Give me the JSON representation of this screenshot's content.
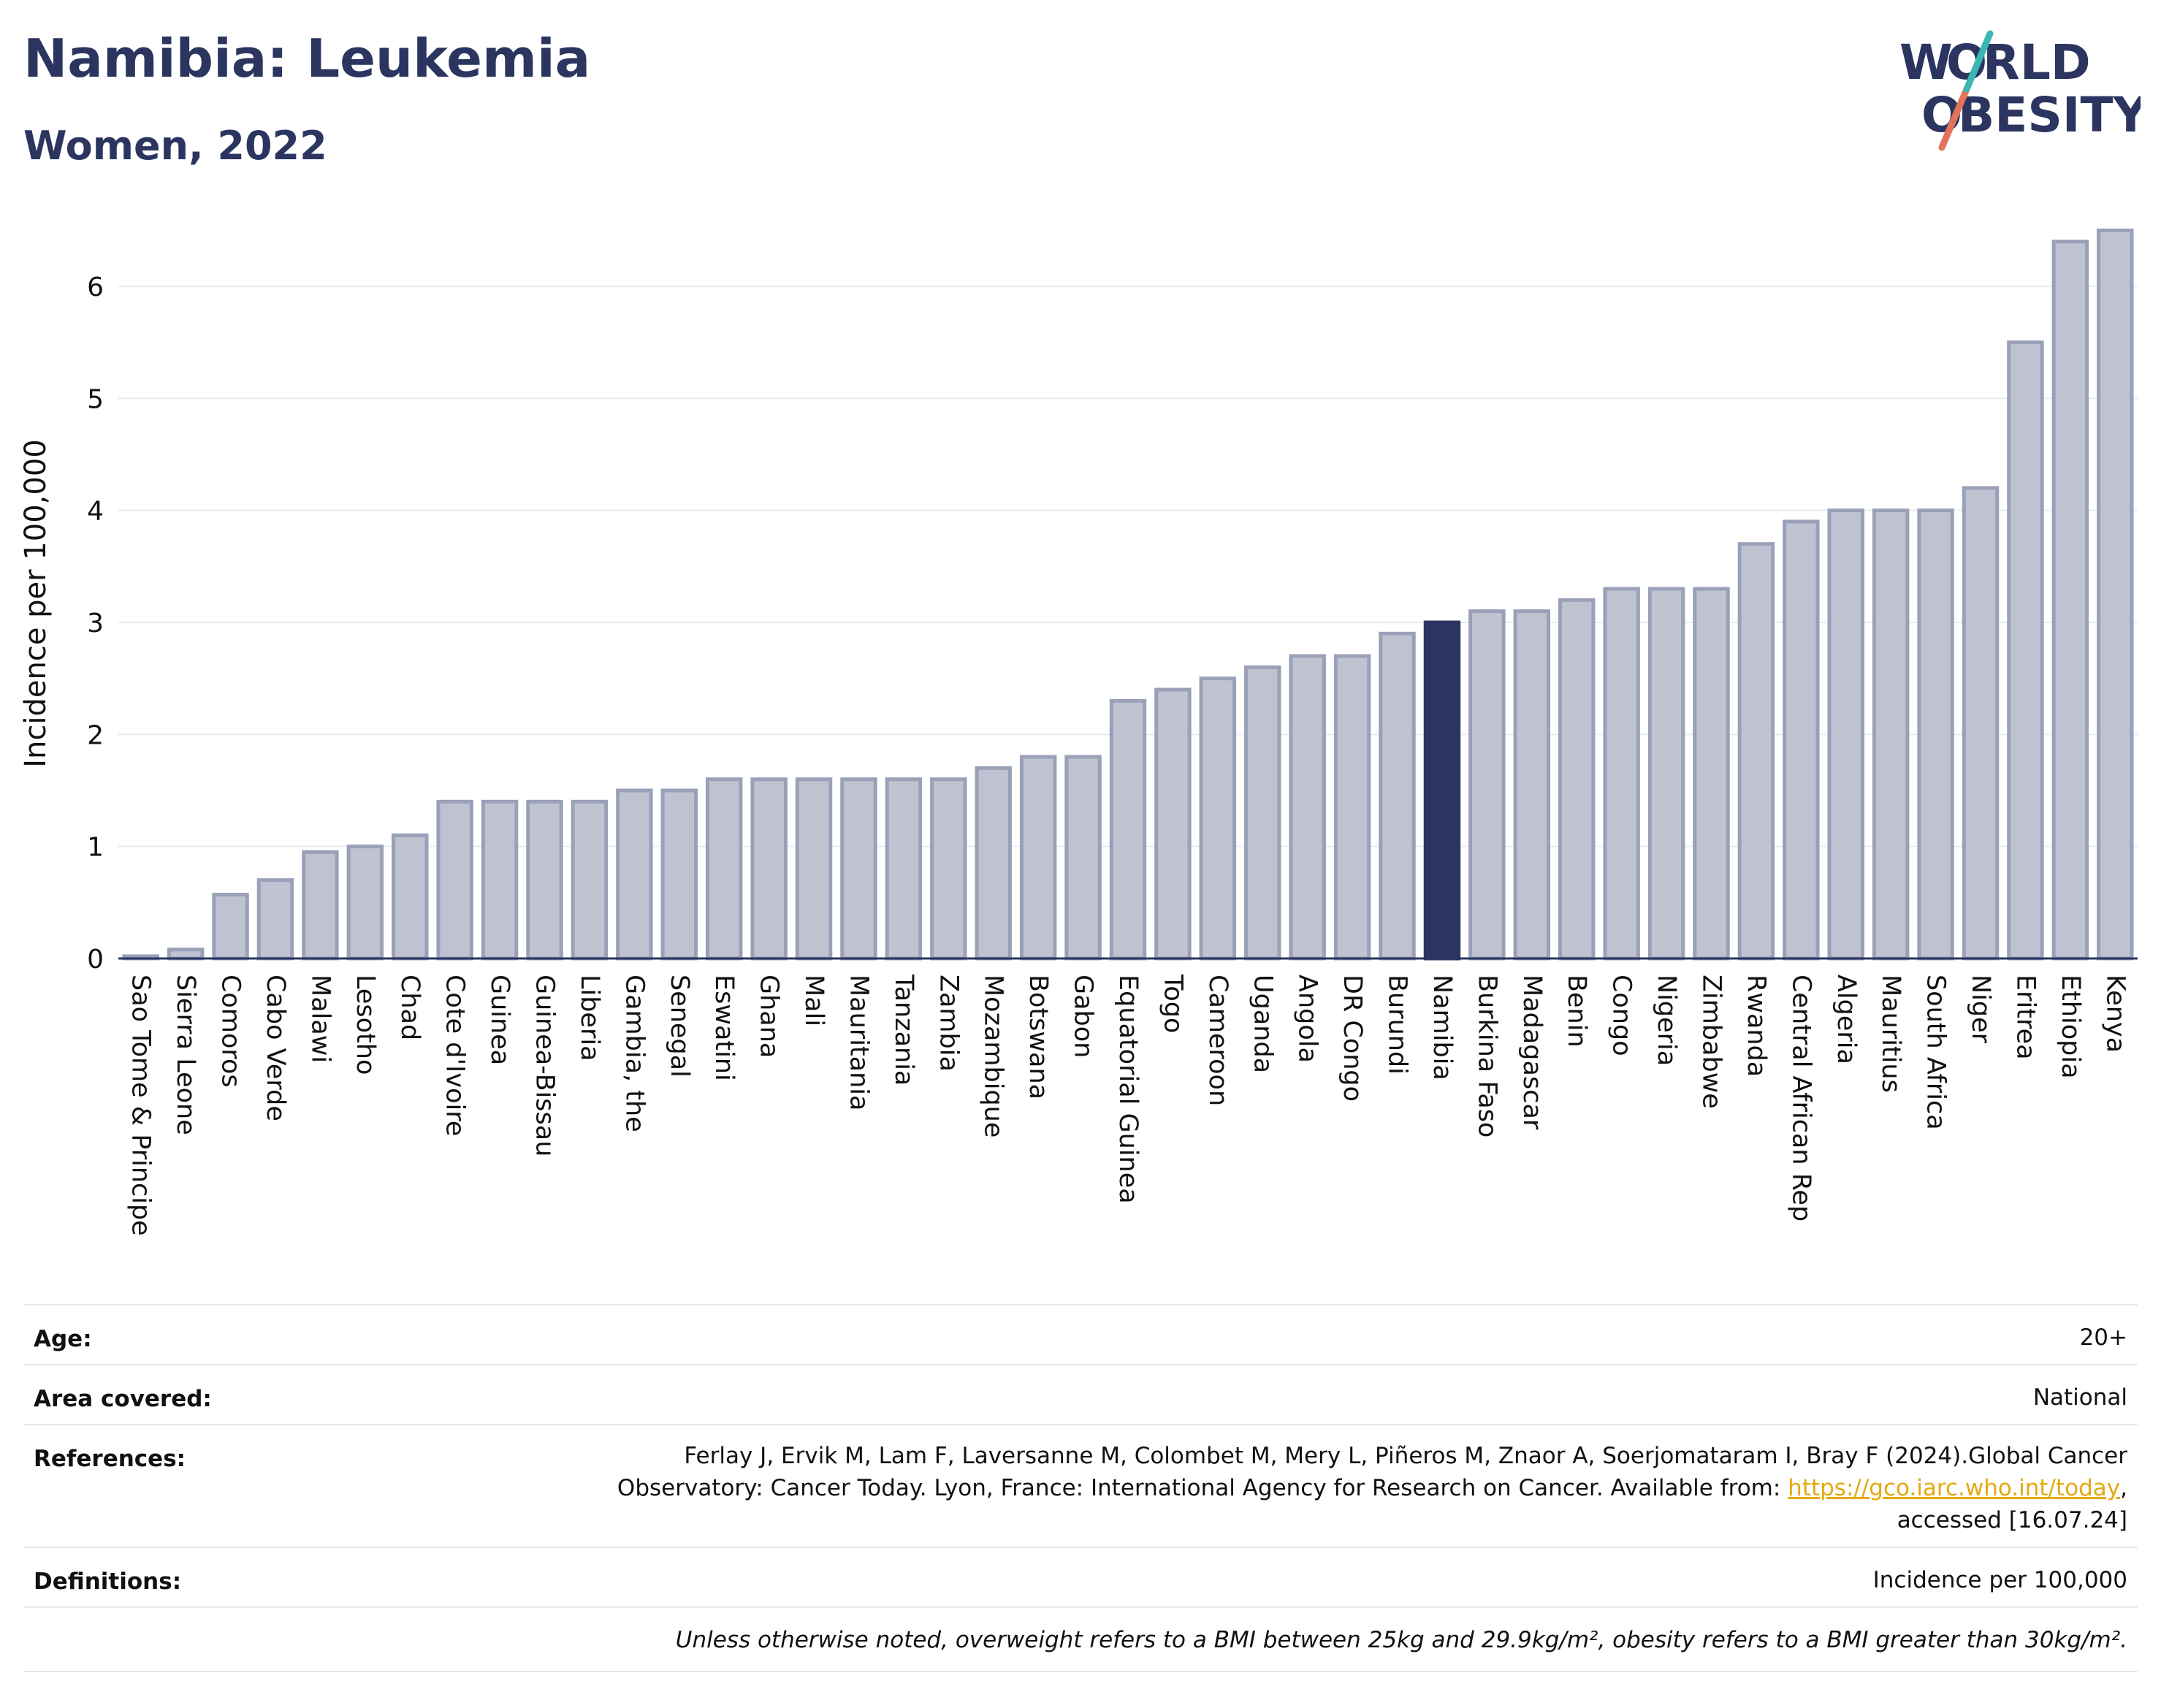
{
  "header": {
    "title": "Namibia: Leukemia",
    "subtitle": "Women, 2022",
    "logo_text": "WORLD OBESITY"
  },
  "colors": {
    "bar_default": "#bfc3d1",
    "bar_border": "#9aa0b8",
    "bar_highlight": "#2b3560",
    "title": "#2b3560"
  },
  "chart_data": {
    "type": "bar",
    "ylabel": "Incidence per 100,000",
    "xlabel": "",
    "ylim": [
      0,
      6.6
    ],
    "yticks": [
      0,
      1,
      2,
      3,
      4,
      5,
      6
    ],
    "grid": true,
    "highlight": "Namibia",
    "categories": [
      "Sao Tome & Principe",
      "Sierra Leone",
      "Comoros",
      "Cabo Verde",
      "Malawi",
      "Lesotho",
      "Chad",
      "Cote d'Ivoire",
      "Guinea",
      "Guinea-Bissau",
      "Liberia",
      "Gambia, the",
      "Senegal",
      "Eswatini",
      "Ghana",
      "Mali",
      "Mauritania",
      "Tanzania",
      "Zambia",
      "Mozambique",
      "Botswana",
      "Gabon",
      "Equatorial Guinea",
      "Togo",
      "Cameroon",
      "Uganda",
      "Angola",
      "DR Congo",
      "Burundi",
      "Namibia",
      "Burkina Faso",
      "Madagascar",
      "Benin",
      "Congo",
      "Nigeria",
      "Zimbabwe",
      "Rwanda",
      "Central African Rep",
      "Algeria",
      "Mauritius",
      "South Africa",
      "Niger",
      "Eritrea",
      "Ethiopia",
      "Kenya"
    ],
    "values": [
      0.02,
      0.08,
      0.57,
      0.7,
      0.95,
      1.0,
      1.1,
      1.4,
      1.4,
      1.4,
      1.4,
      1.5,
      1.5,
      1.6,
      1.6,
      1.6,
      1.6,
      1.6,
      1.6,
      1.7,
      1.8,
      1.8,
      2.3,
      2.4,
      2.5,
      2.6,
      2.7,
      2.7,
      2.9,
      3.0,
      3.1,
      3.1,
      3.2,
      3.3,
      3.3,
      3.3,
      3.7,
      3.9,
      4.0,
      4.0,
      4.0,
      4.2,
      5.5,
      6.4,
      6.5
    ]
  },
  "meta": {
    "age_label": "Age:",
    "age_value": "20+",
    "area_label": "Area covered:",
    "area_value": "National",
    "references_label": "References:",
    "references_line1": "Ferlay J, Ervik M, Lam F, Laversanne M, Colombet M, Mery L, Piñeros M, Znaor A, Soerjomataram I, Bray F (2024).Global Cancer",
    "references_line2_pre": "Observatory: Cancer Today. Lyon, France: International Agency for Research on Cancer. Available from: ",
    "references_link": "https://gco.iarc.who.int/today",
    "references_line2_post": ",",
    "references_line3": "accessed [16.07.24]",
    "definitions_label": "Definitions:",
    "definitions_value": "Incidence per 100,000",
    "note": "Unless otherwise noted, overweight refers to a BMI between 25kg and 29.9kg/m², obesity refers to a BMI greater than 30kg/m²."
  }
}
